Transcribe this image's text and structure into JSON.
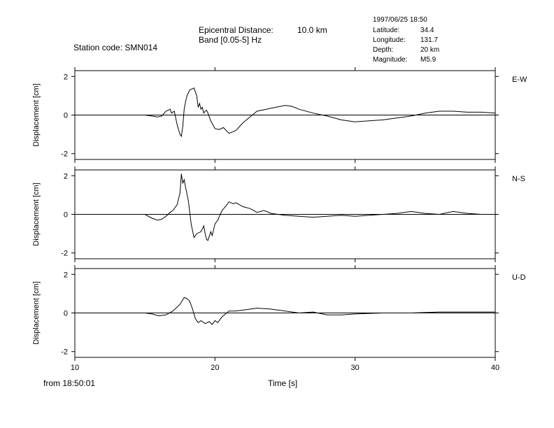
{
  "header": {
    "station": "Station code: SMN014",
    "epi_label": "Epicentral Distance:",
    "epi_value": "10.0 km",
    "band": "Band [0.05-5] Hz",
    "datetime": "1997/06/25 18:50",
    "meta": [
      {
        "label": "Latitude:",
        "value": "34.4"
      },
      {
        "label": "Longitude:",
        "value": "131.7"
      },
      {
        "label": "Depth:",
        "value": "20 km"
      },
      {
        "label": "Magnitude:",
        "value": "M5.9"
      }
    ]
  },
  "footer": {
    "from": "from 18:50:01",
    "xlabel": "Time [s]"
  },
  "chart_data": {
    "type": "line",
    "xlabel": "Time [s]",
    "ylabel": "Displacement [cm]",
    "xlim": [
      10,
      40
    ],
    "ylim": [
      -2.3,
      2.3
    ],
    "x_ticks": [
      10,
      20,
      30,
      40
    ],
    "y_ticks": [
      -2,
      0,
      2
    ],
    "x_tick_labels": [
      "10",
      "20",
      "30",
      "40"
    ],
    "y_tick_labels": [
      "-2",
      "0",
      "2"
    ],
    "series": [
      {
        "name": "E-W",
        "color": "#000000",
        "x": [
          10,
          15,
          15.5,
          15.9,
          16.2,
          16.5,
          16.8,
          16.9,
          17.1,
          17.3,
          17.5,
          17.6,
          17.7,
          17.8,
          17.9,
          18.0,
          18.2,
          18.5,
          18.7,
          18.8,
          18.9,
          19.0,
          19.1,
          19.2,
          19.3,
          19.4,
          19.5,
          19.7,
          20.0,
          20.3,
          20.6,
          21.0,
          21.5,
          22.0,
          22.5,
          23.0,
          24.0,
          25.0,
          25.5,
          26.0,
          27.0,
          28.0,
          29.0,
          30.0,
          31.0,
          32.0,
          33.0,
          34.0,
          35.0,
          36.0,
          37.0,
          38.0,
          39.0,
          40.0
        ],
        "y": [
          0,
          0,
          -0.05,
          -0.1,
          -0.05,
          0.2,
          0.3,
          0.1,
          0.2,
          -0.5,
          -1.0,
          -1.1,
          -0.6,
          0.3,
          0.7,
          1.0,
          1.3,
          1.4,
          1.0,
          0.4,
          0.6,
          0.3,
          0.4,
          0.1,
          0.2,
          0.25,
          0.1,
          -0.3,
          -0.7,
          -0.75,
          -0.65,
          -0.95,
          -0.8,
          -0.4,
          -0.1,
          0.2,
          0.35,
          0.5,
          0.45,
          0.3,
          0.1,
          -0.05,
          -0.25,
          -0.35,
          -0.3,
          -0.25,
          -0.15,
          -0.05,
          0.1,
          0.2,
          0.2,
          0.15,
          0.15,
          0.1
        ]
      },
      {
        "name": "N-S",
        "color": "#000000",
        "x": [
          10,
          15,
          15.5,
          15.9,
          16.2,
          16.5,
          16.8,
          17.0,
          17.3,
          17.5,
          17.6,
          17.7,
          17.8,
          17.9,
          18.1,
          18.3,
          18.5,
          18.7,
          19.0,
          19.2,
          19.3,
          19.4,
          19.5,
          19.7,
          19.8,
          20.0,
          20.2,
          20.5,
          20.8,
          21.0,
          21.3,
          21.5,
          22.0,
          22.5,
          23.0,
          23.5,
          24.0,
          25.0,
          26.0,
          27.0,
          28.0,
          29.0,
          30.0,
          31.0,
          32.0,
          33.0,
          34.0,
          35.0,
          36.0,
          37.0,
          38.0,
          39.0,
          40.0
        ],
        "y": [
          0,
          0,
          -0.2,
          -0.3,
          -0.25,
          -0.1,
          0.1,
          0.2,
          0.5,
          1.1,
          2.1,
          1.6,
          1.8,
          1.4,
          0.7,
          -0.5,
          -1.2,
          -1.0,
          -0.9,
          -0.6,
          -1.0,
          -1.3,
          -1.35,
          -0.9,
          -1.1,
          -0.5,
          -0.3,
          0.2,
          0.45,
          0.65,
          0.55,
          0.6,
          0.4,
          0.3,
          0.1,
          0.2,
          0.05,
          -0.05,
          -0.1,
          -0.15,
          -0.1,
          -0.05,
          -0.1,
          -0.05,
          0.0,
          0.05,
          0.15,
          0.05,
          0.0,
          0.15,
          0.05,
          0.0,
          0.0
        ]
      },
      {
        "name": "U-D",
        "color": "#000000",
        "x": [
          10,
          15,
          15.5,
          16.0,
          16.5,
          17.0,
          17.5,
          17.8,
          18.0,
          18.2,
          18.4,
          18.6,
          18.8,
          19.0,
          19.3,
          19.6,
          19.8,
          20.0,
          20.2,
          20.5,
          21.0,
          21.5,
          22.0,
          22.5,
          23.0,
          24.0,
          25.0,
          26.0,
          27.0,
          28.0,
          29.0,
          30.0,
          32.0,
          34.0,
          36.0,
          38.0,
          40.0
        ],
        "y": [
          0,
          0,
          -0.05,
          -0.15,
          -0.1,
          0.1,
          0.45,
          0.8,
          0.75,
          0.6,
          0.2,
          -0.3,
          -0.5,
          -0.4,
          -0.55,
          -0.45,
          -0.6,
          -0.4,
          -0.5,
          -0.2,
          0.1,
          0.1,
          0.15,
          0.2,
          0.25,
          0.2,
          0.1,
          0.0,
          0.05,
          -0.1,
          -0.1,
          -0.05,
          0.0,
          0.0,
          0.05,
          0.05,
          0.05
        ]
      }
    ]
  }
}
